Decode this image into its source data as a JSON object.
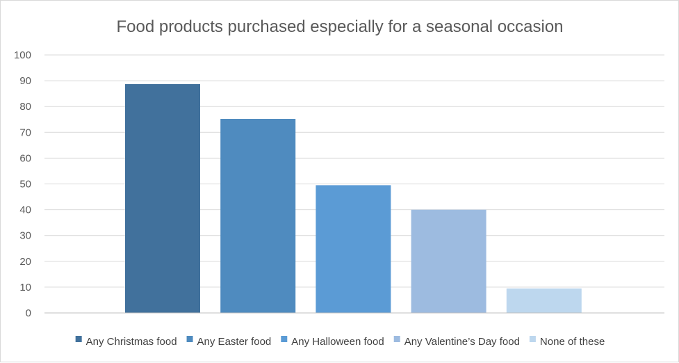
{
  "chart_data": {
    "type": "bar",
    "title": "Food products purchased especially for a seasonal occasion",
    "xlabel": "",
    "ylabel": "",
    "ylim": [
      0,
      100
    ],
    "yticks": [
      0,
      10,
      20,
      30,
      40,
      50,
      60,
      70,
      80,
      90,
      100
    ],
    "grid": true,
    "legend_position": "bottom",
    "series": [
      {
        "name": "Any Christmas food",
        "value": 88.7,
        "color": "#41719c"
      },
      {
        "name": "Any Easter food",
        "value": 75.2,
        "color": "#4f8bbf"
      },
      {
        "name": "Any Halloween food",
        "value": 49.5,
        "color": "#5b9bd5"
      },
      {
        "name": "Any Valentine’s Day food",
        "value": 40,
        "color": "#9dbbe0"
      },
      {
        "name": "None of these",
        "value": 9.5,
        "color": "#bdd7ee"
      }
    ]
  }
}
